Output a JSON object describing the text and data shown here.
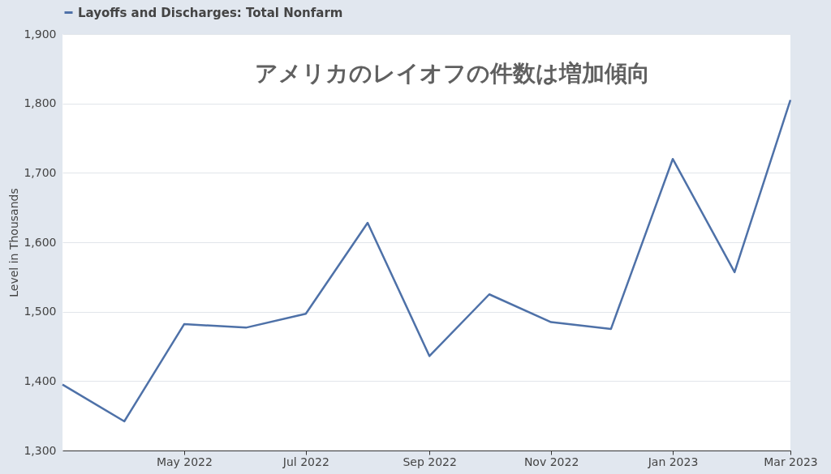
{
  "chart_data": {
    "type": "line",
    "ylabel": "Level in Thousands",
    "x": [
      "2022-03",
      "2022-04",
      "2022-05",
      "2022-06",
      "2022-07",
      "2022-08",
      "2022-09",
      "2022-10",
      "2022-11",
      "2022-12",
      "2023-01",
      "2023-02",
      "2023-03"
    ],
    "series": [
      {
        "name": "Layoffs and Discharges: Total Nonfarm",
        "color": "#4e71a8",
        "values": [
          1395,
          1342,
          1482,
          1477,
          1497,
          1628,
          1436,
          1525,
          1485,
          1475,
          1720,
          1557,
          1805
        ]
      }
    ],
    "xlim": [
      "2022-03",
      "2023-03"
    ],
    "xticks": [
      {
        "value": "2022-05",
        "label": "May 2022"
      },
      {
        "value": "2022-07",
        "label": "Jul 2022"
      },
      {
        "value": "2022-09",
        "label": "Sep 2022"
      },
      {
        "value": "2022-11",
        "label": "Nov 2022"
      },
      {
        "value": "2023-01",
        "label": "Jan 2023"
      },
      {
        "value": "2023-03",
        "label": "Mar 2023"
      }
    ],
    "ylim": [
      1300,
      1900
    ],
    "yticks": [
      {
        "value": 1300,
        "label": "1,300"
      },
      {
        "value": 1400,
        "label": "1,400"
      },
      {
        "value": 1500,
        "label": "1,500"
      },
      {
        "value": 1600,
        "label": "1,600"
      },
      {
        "value": 1700,
        "label": "1,700"
      },
      {
        "value": 1800,
        "label": "1,800"
      },
      {
        "value": 1900,
        "label": "1,900"
      }
    ],
    "grid": "y",
    "legend": "top left",
    "marker": "none",
    "line_style": "solid",
    "annotations": [
      "アメリカのレイオフの件数は増加傾向"
    ]
  }
}
